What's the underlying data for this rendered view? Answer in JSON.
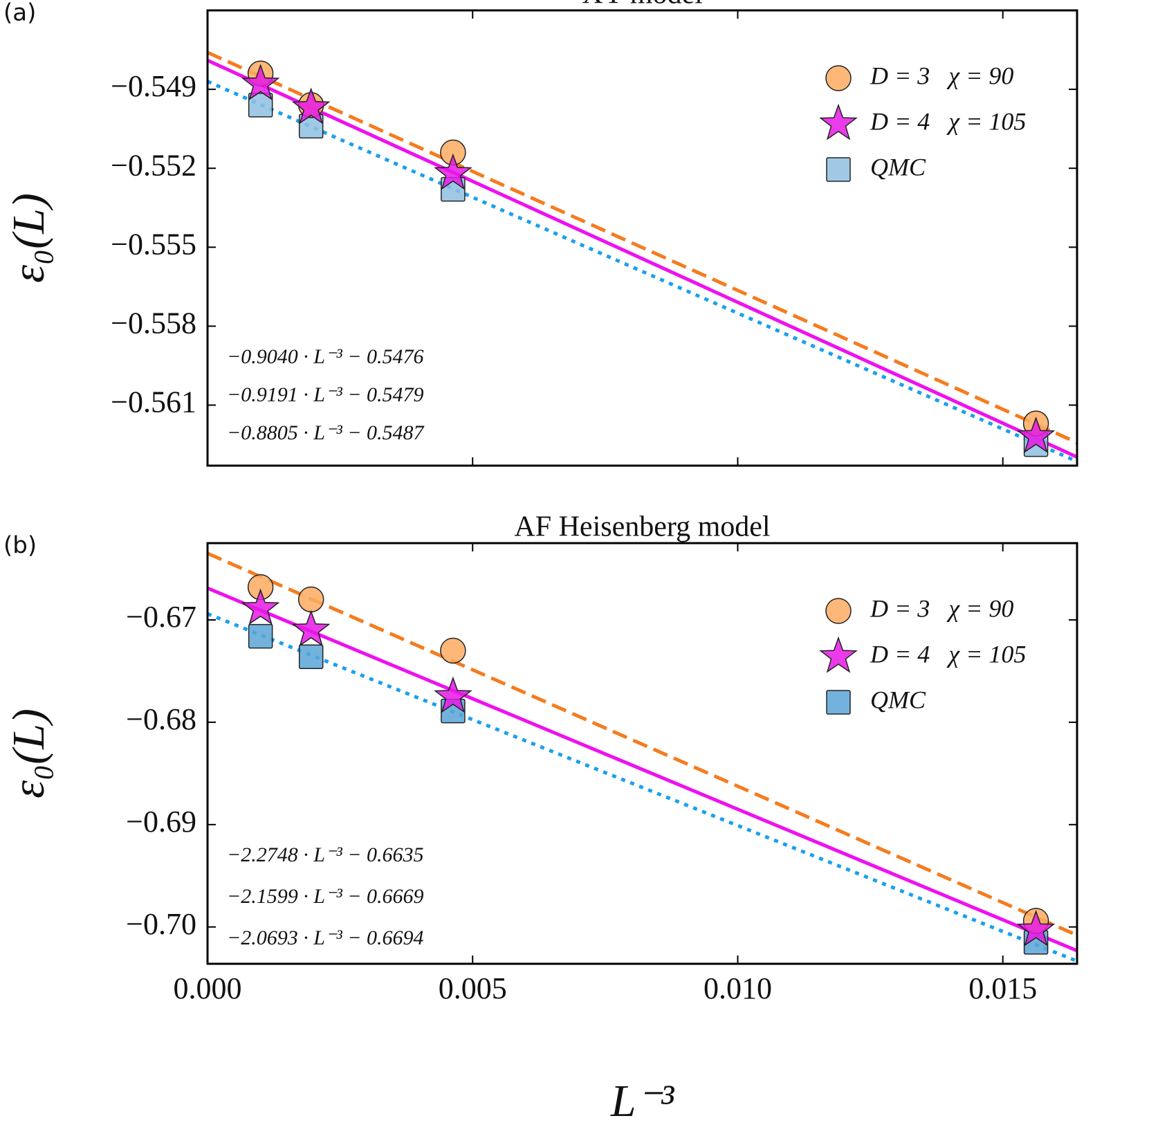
{
  "chart_data": [
    {
      "type": "scatter",
      "panel_label": "(a)",
      "title": "XY model",
      "y_label": "ε₀(L)",
      "xlim": [
        0,
        0.0164
      ],
      "xticks": [
        0,
        0.005,
        0.01,
        0.015
      ],
      "ylim": [
        -0.5633,
        -0.546
      ],
      "yticks": [
        {
          "value": -0.549,
          "label": "−0.549"
        },
        {
          "value": -0.552,
          "label": "−0.552"
        },
        {
          "value": -0.555,
          "label": "−0.555"
        },
        {
          "value": -0.558,
          "label": "−0.558"
        },
        {
          "value": -0.561,
          "label": "−0.561"
        }
      ],
      "legend": "upper right",
      "x": [
        0.001,
        0.001953,
        0.00463,
        0.015625
      ],
      "series": [
        {
          "name": "D = 3   χ = 90",
          "marker": "circle",
          "color": "#fdab62",
          "values": [
            -0.5484,
            -0.5496,
            -0.5514,
            -0.5617
          ],
          "fit": {
            "slope": -0.904,
            "intercept": -0.5476,
            "label": "−0.9040 · L⁻³ − 0.5476",
            "color": "#f57c1f",
            "style": "dashed"
          }
        },
        {
          "name": "D = 4   χ = 105",
          "marker": "star",
          "color": "#e619e6",
          "values": [
            -0.5488,
            -0.5497,
            -0.5522,
            -0.5622
          ],
          "fit": {
            "slope": -0.9191,
            "intercept": -0.5479,
            "label": "−0.9191 · L⁻³ − 0.5479",
            "color": "#ee11ee",
            "style": "solid"
          }
        },
        {
          "name": "QMC",
          "marker": "square",
          "color": "#8fc0e2",
          "values": [
            -0.5496,
            -0.5504,
            -0.5528,
            -0.5625
          ],
          "fit": {
            "slope": -0.8805,
            "intercept": -0.5487,
            "label": "−0.8805 · L⁻³ − 0.5487",
            "color": "#18a0ee",
            "style": "dotted"
          }
        }
      ]
    },
    {
      "type": "scatter",
      "panel_label": "(b)",
      "title": "AF Heisenberg model",
      "y_label": "ε₀(L)",
      "x_label": "L⁻³",
      "xlim": [
        0,
        0.0164
      ],
      "xticks": [
        {
          "value": 0,
          "label": "0.000"
        },
        {
          "value": 0.005,
          "label": "0.005"
        },
        {
          "value": 0.01,
          "label": "0.010"
        },
        {
          "value": 0.015,
          "label": "0.015"
        }
      ],
      "ylim": [
        -0.7036,
        -0.6625
      ],
      "yticks": [
        {
          "value": -0.67,
          "label": "−0.67"
        },
        {
          "value": -0.68,
          "label": "−0.68"
        },
        {
          "value": -0.69,
          "label": "−0.69"
        },
        {
          "value": -0.7,
          "label": "−0.70"
        }
      ],
      "legend": "upper right",
      "x": [
        0.001,
        0.001953,
        0.00463,
        0.015625
      ],
      "series": [
        {
          "name": "D = 3   χ = 90",
          "marker": "circle",
          "color": "#fdab62",
          "values": [
            -0.6668,
            -0.668,
            -0.673,
            -0.6994
          ],
          "fit": {
            "slope": -2.2748,
            "intercept": -0.6635,
            "label": "−2.2748 · L⁻³ − 0.6635",
            "color": "#f57c1f",
            "style": "dashed"
          }
        },
        {
          "name": "D = 4   χ = 105",
          "marker": "star",
          "color": "#e619e6",
          "values": [
            -0.6689,
            -0.671,
            -0.6775,
            -0.7003
          ],
          "fit": {
            "slope": -2.1599,
            "intercept": -0.6669,
            "label": "−2.1599 · L⁻³ − 0.6669",
            "color": "#ee11ee",
            "style": "solid"
          }
        },
        {
          "name": "QMC",
          "marker": "square",
          "color": "#5aa5d6",
          "values": [
            -0.6716,
            -0.6736,
            -0.6789,
            -0.7015
          ],
          "fit": {
            "slope": -2.0693,
            "intercept": -0.6694,
            "label": "−2.0693 · L⁻³ − 0.6694",
            "color": "#18a0ee",
            "style": "dotted"
          }
        }
      ]
    }
  ]
}
